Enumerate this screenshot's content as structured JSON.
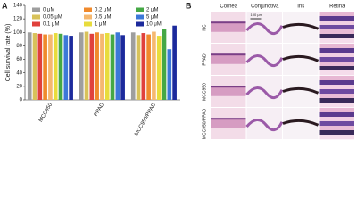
{
  "chart_data": {
    "type": "bar",
    "y_label": "Cell survival rate (%)",
    "categories": [
      "MCC950",
      "PPAD",
      "MCC950/PPAD"
    ],
    "series": [
      {
        "name": "0 μM",
        "color": "#9e9e9e",
        "values": [
          100,
          100,
          100
        ]
      },
      {
        "name": "0.05 μM",
        "color": "#d8c25a",
        "values": [
          99,
          101,
          96
        ]
      },
      {
        "name": "0.1 μM",
        "color": "#e0413c",
        "values": [
          98,
          98,
          99
        ]
      },
      {
        "name": "0.2 μM",
        "color": "#f08a2c",
        "values": [
          97,
          100,
          97
        ]
      },
      {
        "name": "0.5 μM",
        "color": "#f5b870",
        "values": [
          97,
          98,
          101
        ]
      },
      {
        "name": "1 μM",
        "color": "#e8dc3c",
        "values": [
          99,
          99,
          95
        ]
      },
      {
        "name": "2 μM",
        "color": "#45a845",
        "values": [
          98,
          97,
          105
        ]
      },
      {
        "name": "5 μM",
        "color": "#3c78d8",
        "values": [
          96,
          100,
          75
        ]
      },
      {
        "name": "10 μM",
        "color": "#1c2a9c",
        "values": [
          95,
          96,
          110
        ]
      }
    ],
    "ylim": [
      0,
      140
    ],
    "yticks": [
      0,
      20,
      40,
      60,
      80,
      100,
      120,
      140
    ]
  },
  "panel_labels": [
    "A",
    "B"
  ],
  "histology": {
    "columns": [
      "Cornea",
      "Conjunctiva",
      "Iris",
      "Retina"
    ],
    "rows": [
      "NC",
      "PPAD",
      "MCC950",
      "MCC950/PPAD"
    ],
    "scale_bar": "100 μm"
  }
}
